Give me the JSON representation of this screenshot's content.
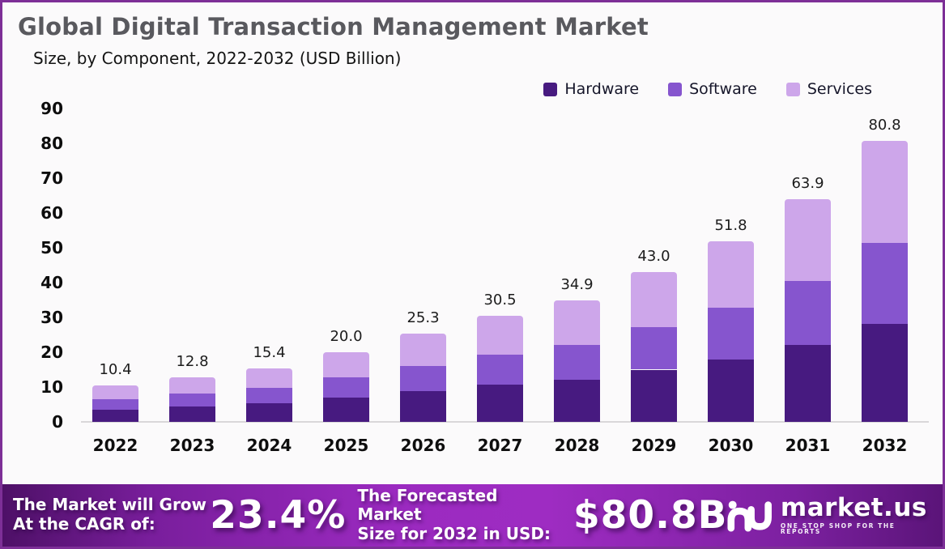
{
  "chart_data": {
    "type": "bar",
    "variant": "stacked",
    "title": "Global Digital Transaction Management Market",
    "subtitle": "Size, by Component, 2022-2032 (USD Billion)",
    "categories": [
      "2022",
      "2023",
      "2024",
      "2025",
      "2026",
      "2027",
      "2028",
      "2029",
      "2030",
      "2031",
      "2032"
    ],
    "series": [
      {
        "name": "Hardware",
        "color": "#471a80",
        "values": [
          3.6,
          4.5,
          5.4,
          7.0,
          8.8,
          10.6,
          12.1,
          15.0,
          18.0,
          22.2,
          28.1
        ]
      },
      {
        "name": "Software",
        "color": "#8655ce",
        "values": [
          3.0,
          3.7,
          4.4,
          5.7,
          7.3,
          8.8,
          10.0,
          12.3,
          14.9,
          18.3,
          23.2
        ]
      },
      {
        "name": "Services",
        "color": "#cda6ea",
        "values": [
          3.8,
          4.6,
          5.6,
          7.3,
          9.2,
          11.1,
          12.8,
          15.7,
          18.9,
          23.4,
          29.5
        ]
      }
    ],
    "totals": [
      "10.4",
      "12.8",
      "15.4",
      "20.0",
      "25.3",
      "30.5",
      "34.9",
      "43.0",
      "51.8",
      "63.9",
      "80.8"
    ],
    "xlabel": "",
    "ylabel": "",
    "ylim": [
      0,
      90
    ],
    "ytick_step": 10,
    "yticks": [
      "0",
      "10",
      "20",
      "30",
      "40",
      "50",
      "60",
      "70",
      "80",
      "90"
    ],
    "grid": false,
    "legend_position": "top-right"
  },
  "banner": {
    "cagr_label_line1": "The Market will Grow",
    "cagr_label_line2": "At the CAGR of:",
    "cagr_value": "23.4%",
    "forecast_label_line1": "The Forecasted Market",
    "forecast_label_line2": "Size for 2032 in USD:",
    "forecast_value": "$80.8B",
    "brand_name": "market.us",
    "brand_tagline": "ONE STOP SHOP FOR THE REPORTS"
  },
  "colors": {
    "frame_border": "#7d2f97",
    "background": "#fbfafb",
    "title_text": "#59595e",
    "axis_line": "#d9d7d9",
    "banner_gradient_mid": "#9b2ac0",
    "banner_gradient_edge": "#4d1066"
  }
}
